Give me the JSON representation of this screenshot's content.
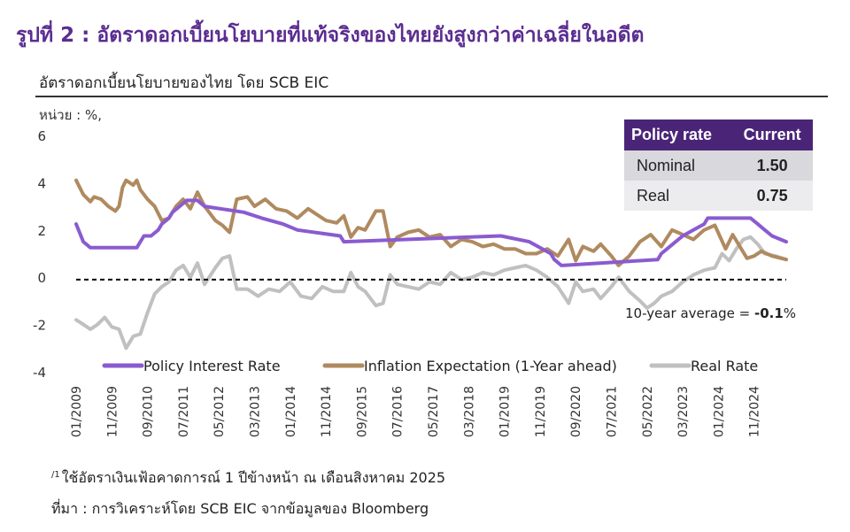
{
  "figure_title": "รูปที่ 2 : อัตราดอกเบี้ยนโยบายที่แท้จริงของไทยยังสูงกว่าค่าเฉลี่ยในอดีต",
  "subtitle": "อัตราดอกเบี้ยนโยบายของไทย โดย SCB EIC",
  "unit_label": "หน่วย : %,",
  "footnote_marker": "/1",
  "footnote": "ใช้อัตราเงินเฟ้อคาดการณ์ 1 ปีข้างหน้า ณ เดือนสิงหาคม 2025",
  "source": "ที่มา : การวิเคราะห์โดย SCB EIC จากข้อมูลของ Bloomberg",
  "table": {
    "header": [
      "Policy rate",
      "Current"
    ],
    "rows": [
      {
        "label": "Nominal",
        "value": "1.50"
      },
      {
        "label": "Real",
        "value": "0.75"
      }
    ]
  },
  "chart_data": {
    "type": "line",
    "yticks": [
      6,
      4,
      2,
      0,
      -2,
      -4
    ],
    "ylim": [
      -4,
      6
    ],
    "x_start": "01/2009",
    "x_end": "08/2025",
    "xticks": [
      "01/2009",
      "11/2009",
      "09/2010",
      "07/2011",
      "05/2012",
      "03/2013",
      "01/2014",
      "11/2014",
      "09/2015",
      "07/2016",
      "05/2017",
      "03/2018",
      "01/2019",
      "11/2019",
      "09/2020",
      "07/2021",
      "05/2022",
      "03/2023",
      "01/2024",
      "11/2024"
    ],
    "annotation": {
      "prefix": "10-year average = ",
      "value": "-0.1",
      "suffix": "%",
      "y": -0.1
    },
    "colors": {
      "policy": "#8a5bd0",
      "inflation": "#b08a5f",
      "real": "#c0c0c0",
      "average": "#000000"
    },
    "series": [
      {
        "name": "Policy Interest Rate",
        "key": "policy",
        "points": [
          [
            "2009-01",
            2.25
          ],
          [
            "2009-03",
            1.5
          ],
          [
            "2009-05",
            1.25
          ],
          [
            "2010-06",
            1.25
          ],
          [
            "2010-07",
            1.5
          ],
          [
            "2010-08",
            1.75
          ],
          [
            "2010-10",
            1.75
          ],
          [
            "2010-12",
            2.0
          ],
          [
            "2011-01",
            2.25
          ],
          [
            "2011-03",
            2.5
          ],
          [
            "2011-04",
            2.75
          ],
          [
            "2011-06",
            3.0
          ],
          [
            "2011-08",
            3.25
          ],
          [
            "2011-11",
            3.25
          ],
          [
            "2012-01",
            3.0
          ],
          [
            "2012-12",
            2.75
          ],
          [
            "2013-05",
            2.5
          ],
          [
            "2013-11",
            2.25
          ],
          [
            "2014-03",
            2.0
          ],
          [
            "2015-03",
            1.75
          ],
          [
            "2015-04",
            1.5
          ],
          [
            "2018-12",
            1.75
          ],
          [
            "2019-08",
            1.5
          ],
          [
            "2019-11",
            1.25
          ],
          [
            "2020-02",
            1.0
          ],
          [
            "2020-03",
            0.75
          ],
          [
            "2020-05",
            0.5
          ],
          [
            "2022-08",
            0.75
          ],
          [
            "2022-09",
            1.0
          ],
          [
            "2022-11",
            1.25
          ],
          [
            "2023-01",
            1.5
          ],
          [
            "2023-03",
            1.75
          ],
          [
            "2023-06",
            2.0
          ],
          [
            "2023-09",
            2.25
          ],
          [
            "2023-10",
            2.5
          ],
          [
            "2024-10",
            2.5
          ],
          [
            "2024-12",
            2.25
          ],
          [
            "2025-02",
            2.0
          ],
          [
            "2025-04",
            1.75
          ],
          [
            "2025-08",
            1.5
          ]
        ]
      },
      {
        "name": "Inflation Expectation (1-Year ahead)",
        "key": "inflation",
        "points": [
          [
            "2009-01",
            4.1
          ],
          [
            "2009-03",
            3.5
          ],
          [
            "2009-05",
            3.2
          ],
          [
            "2009-06",
            3.4
          ],
          [
            "2009-08",
            3.3
          ],
          [
            "2009-10",
            3.0
          ],
          [
            "2009-12",
            2.8
          ],
          [
            "2010-01",
            3.0
          ],
          [
            "2010-02",
            3.8
          ],
          [
            "2010-03",
            4.1
          ],
          [
            "2010-04",
            4.0
          ],
          [
            "2010-05",
            3.9
          ],
          [
            "2010-06",
            4.1
          ],
          [
            "2010-07",
            3.7
          ],
          [
            "2010-09",
            3.3
          ],
          [
            "2010-11",
            3.0
          ],
          [
            "2011-01",
            2.4
          ],
          [
            "2011-03",
            2.5
          ],
          [
            "2011-05",
            3.0
          ],
          [
            "2011-07",
            3.3
          ],
          [
            "2011-09",
            2.9
          ],
          [
            "2011-11",
            3.6
          ],
          [
            "2012-01",
            3.0
          ],
          [
            "2012-04",
            2.4
          ],
          [
            "2012-06",
            2.2
          ],
          [
            "2012-08",
            1.9
          ],
          [
            "2012-10",
            3.3
          ],
          [
            "2013-01",
            3.4
          ],
          [
            "2013-03",
            3.0
          ],
          [
            "2013-06",
            3.3
          ],
          [
            "2013-09",
            2.9
          ],
          [
            "2013-12",
            2.8
          ],
          [
            "2014-03",
            2.5
          ],
          [
            "2014-06",
            2.9
          ],
          [
            "2014-09",
            2.6
          ],
          [
            "2014-11",
            2.4
          ],
          [
            "2015-02",
            2.3
          ],
          [
            "2015-04",
            2.6
          ],
          [
            "2015-06",
            1.7
          ],
          [
            "2015-08",
            2.1
          ],
          [
            "2015-10",
            2.0
          ],
          [
            "2016-01",
            2.8
          ],
          [
            "2016-03",
            2.8
          ],
          [
            "2016-05",
            1.3
          ],
          [
            "2016-07",
            1.7
          ],
          [
            "2016-10",
            1.9
          ],
          [
            "2017-01",
            2.0
          ],
          [
            "2017-04",
            1.7
          ],
          [
            "2017-07",
            1.8
          ],
          [
            "2017-10",
            1.3
          ],
          [
            "2018-01",
            1.6
          ],
          [
            "2018-04",
            1.5
          ],
          [
            "2018-07",
            1.3
          ],
          [
            "2018-10",
            1.4
          ],
          [
            "2019-01",
            1.2
          ],
          [
            "2019-04",
            1.2
          ],
          [
            "2019-07",
            1.0
          ],
          [
            "2019-10",
            1.0
          ],
          [
            "2020-01",
            1.2
          ],
          [
            "2020-04",
            0.9
          ],
          [
            "2020-07",
            1.6
          ],
          [
            "2020-09",
            0.7
          ],
          [
            "2020-11",
            1.3
          ],
          [
            "2021-02",
            1.1
          ],
          [
            "2021-04",
            1.4
          ],
          [
            "2021-07",
            0.9
          ],
          [
            "2021-09",
            0.5
          ],
          [
            "2021-12",
            0.9
          ],
          [
            "2022-03",
            1.5
          ],
          [
            "2022-06",
            1.8
          ],
          [
            "2022-09",
            1.3
          ],
          [
            "2022-12",
            2.0
          ],
          [
            "2023-03",
            1.8
          ],
          [
            "2023-06",
            1.6
          ],
          [
            "2023-09",
            2.0
          ],
          [
            "2023-12",
            2.2
          ],
          [
            "2024-03",
            1.2
          ],
          [
            "2024-05",
            1.8
          ],
          [
            "2024-07",
            1.3
          ],
          [
            "2024-09",
            0.8
          ],
          [
            "2024-11",
            0.9
          ],
          [
            "2025-01",
            1.1
          ],
          [
            "2025-04",
            0.9
          ],
          [
            "2025-08",
            0.75
          ]
        ]
      },
      {
        "name": "Real Rate",
        "key": "real",
        "points": [
          [
            "2009-01",
            -1.8
          ],
          [
            "2009-03",
            -2.0
          ],
          [
            "2009-05",
            -2.2
          ],
          [
            "2009-07",
            -2.0
          ],
          [
            "2009-09",
            -1.7
          ],
          [
            "2009-11",
            -2.1
          ],
          [
            "2010-01",
            -2.2
          ],
          [
            "2010-03",
            -3.0
          ],
          [
            "2010-05",
            -2.5
          ],
          [
            "2010-07",
            -2.4
          ],
          [
            "2010-09",
            -1.5
          ],
          [
            "2010-11",
            -0.7
          ],
          [
            "2011-01",
            -0.4
          ],
          [
            "2011-03",
            -0.2
          ],
          [
            "2011-05",
            0.3
          ],
          [
            "2011-07",
            0.5
          ],
          [
            "2011-09",
            0.0
          ],
          [
            "2011-11",
            0.6
          ],
          [
            "2012-01",
            -0.3
          ],
          [
            "2012-04",
            0.4
          ],
          [
            "2012-06",
            0.8
          ],
          [
            "2012-08",
            0.9
          ],
          [
            "2012-10",
            -0.5
          ],
          [
            "2013-01",
            -0.5
          ],
          [
            "2013-04",
            -0.8
          ],
          [
            "2013-07",
            -0.5
          ],
          [
            "2013-10",
            -0.6
          ],
          [
            "2014-01",
            -0.2
          ],
          [
            "2014-04",
            -0.8
          ],
          [
            "2014-07",
            -0.9
          ],
          [
            "2014-10",
            -0.4
          ],
          [
            "2015-01",
            -0.6
          ],
          [
            "2015-04",
            -0.6
          ],
          [
            "2015-06",
            0.2
          ],
          [
            "2015-08",
            -0.4
          ],
          [
            "2015-10",
            -0.6
          ],
          [
            "2016-01",
            -1.2
          ],
          [
            "2016-03",
            -1.1
          ],
          [
            "2016-05",
            0.1
          ],
          [
            "2016-07",
            -0.3
          ],
          [
            "2016-10",
            -0.4
          ],
          [
            "2017-01",
            -0.5
          ],
          [
            "2017-04",
            -0.2
          ],
          [
            "2017-07",
            -0.3
          ],
          [
            "2017-10",
            0.2
          ],
          [
            "2018-01",
            -0.1
          ],
          [
            "2018-04",
            0.0
          ],
          [
            "2018-07",
            0.2
          ],
          [
            "2018-10",
            0.1
          ],
          [
            "2019-01",
            0.3
          ],
          [
            "2019-04",
            0.4
          ],
          [
            "2019-07",
            0.5
          ],
          [
            "2019-10",
            0.3
          ],
          [
            "2020-01",
            0.0
          ],
          [
            "2020-04",
            -0.4
          ],
          [
            "2020-07",
            -1.1
          ],
          [
            "2020-09",
            -0.2
          ],
          [
            "2020-11",
            -0.6
          ],
          [
            "2021-02",
            -0.5
          ],
          [
            "2021-04",
            -0.9
          ],
          [
            "2021-07",
            -0.4
          ],
          [
            "2021-09",
            0.0
          ],
          [
            "2021-12",
            -0.6
          ],
          [
            "2022-03",
            -1.0
          ],
          [
            "2022-05",
            -1.3
          ],
          [
            "2022-07",
            -1.1
          ],
          [
            "2022-09",
            -0.8
          ],
          [
            "2022-12",
            -0.6
          ],
          [
            "2023-03",
            -0.2
          ],
          [
            "2023-06",
            0.1
          ],
          [
            "2023-09",
            0.3
          ],
          [
            "2023-12",
            0.4
          ],
          [
            "2024-02",
            1.0
          ],
          [
            "2024-04",
            0.7
          ],
          [
            "2024-06",
            1.2
          ],
          [
            "2024-08",
            1.6
          ],
          [
            "2024-10",
            1.7
          ],
          [
            "2024-12",
            1.4
          ],
          [
            "2025-02",
            1.0
          ],
          [
            "2025-05",
            0.9
          ],
          [
            "2025-08",
            0.75
          ]
        ]
      }
    ]
  }
}
